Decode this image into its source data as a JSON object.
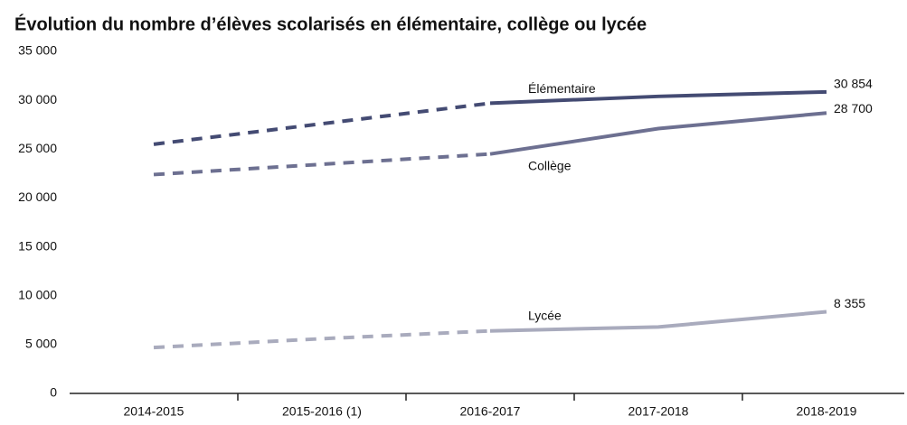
{
  "chart_data": {
    "type": "line",
    "title": "Évolution du nombre d’élèves scolarisés en élémentaire, collège ou lycée",
    "categories": [
      "2014-2015",
      "2015-2016 (1)",
      "2016-2017",
      "2017-2018",
      "2018-2019"
    ],
    "series": [
      {
        "name": "Élémentaire",
        "color": "#444b73",
        "values": [
          25500,
          27600,
          29700,
          30400,
          30854
        ],
        "value_labels": [
          null,
          null,
          null,
          null,
          "30 854"
        ]
      },
      {
        "name": "Collège",
        "color": "#6d7091",
        "values": [
          22400,
          23450,
          24500,
          27100,
          28700
        ],
        "value_labels": [
          null,
          null,
          null,
          null,
          "28 700"
        ]
      },
      {
        "name": "Lycée",
        "color": "#a9abbd",
        "values": [
          4700,
          5600,
          6400,
          6800,
          8355
        ],
        "value_labels": [
          null,
          null,
          null,
          null,
          "8 355"
        ]
      }
    ],
    "dashed_until_index": 2,
    "ylim": [
      0,
      35000
    ],
    "yticks": [
      0,
      {
        "value": 5000,
        "label": "5 000"
      },
      {
        "value": 10000,
        "label": "10 000"
      },
      {
        "value": 15000,
        "label": "15 000"
      },
      {
        "value": 20000,
        "label": "20 000"
      },
      {
        "value": 25000,
        "label": "25 000"
      },
      {
        "value": 30000,
        "label": "30 000"
      },
      {
        "value": 35000,
        "label": "35 000"
      }
    ],
    "grid": false
  }
}
